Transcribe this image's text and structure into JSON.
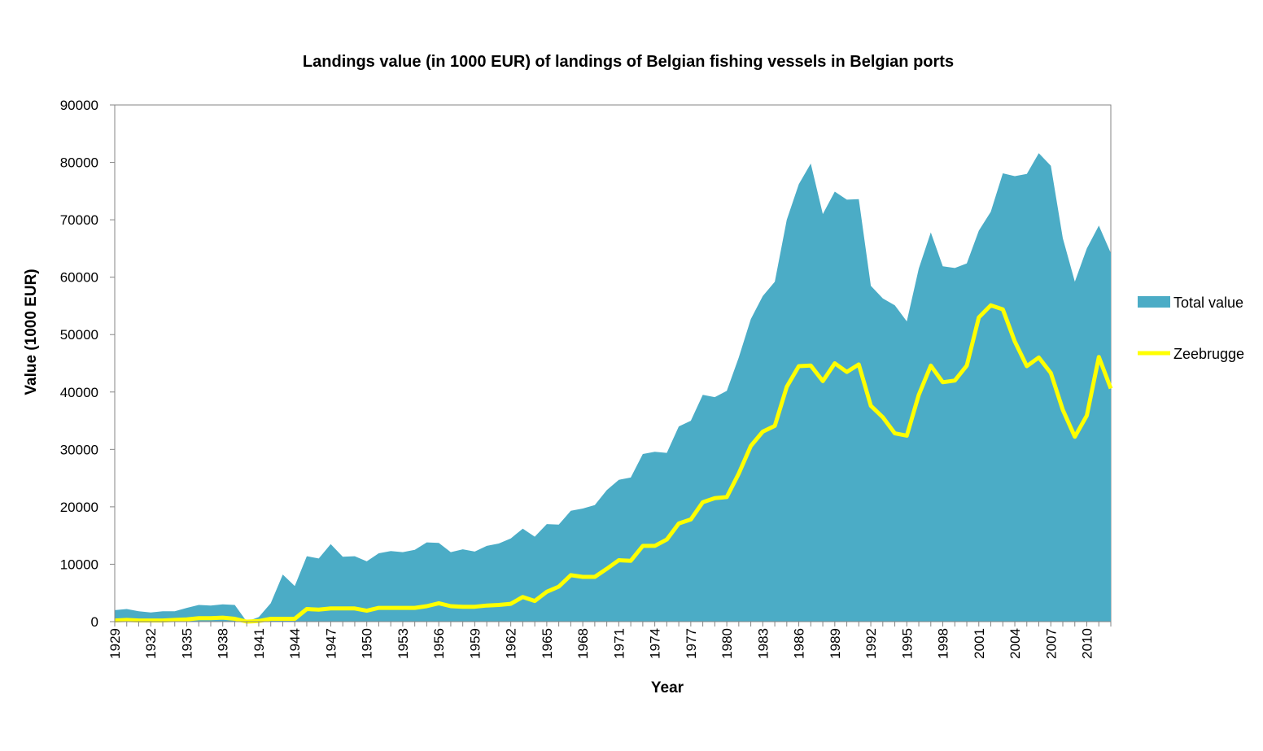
{
  "chart_data": {
    "type": "area",
    "title": "Landings value (in 1000 EUR) of landings of Belgian fishing vessels in Belgian ports",
    "xlabel": "Year",
    "ylabel": "Value  (1000 EUR)",
    "ylim": [
      0,
      90000
    ],
    "yticks": [
      0,
      10000,
      20000,
      30000,
      40000,
      50000,
      60000,
      70000,
      80000,
      90000
    ],
    "xtick_labels": [
      "1929",
      "1932",
      "1935",
      "1938",
      "1941",
      "1944",
      "1947",
      "1950",
      "1953",
      "1956",
      "1959",
      "1962",
      "1965",
      "1968",
      "1971",
      "1974",
      "1977",
      "1980",
      "1983",
      "1986",
      "1989",
      "1992",
      "1995",
      "1998",
      "2001",
      "2004",
      "2007",
      "2010"
    ],
    "grid": false,
    "legend_position": "right",
    "x": [
      1929,
      1930,
      1931,
      1932,
      1933,
      1934,
      1935,
      1936,
      1937,
      1938,
      1939,
      1940,
      1941,
      1942,
      1943,
      1944,
      1945,
      1946,
      1947,
      1948,
      1949,
      1950,
      1951,
      1952,
      1953,
      1954,
      1955,
      1956,
      1957,
      1958,
      1959,
      1960,
      1961,
      1962,
      1963,
      1964,
      1965,
      1966,
      1967,
      1968,
      1969,
      1970,
      1971,
      1972,
      1973,
      1974,
      1975,
      1976,
      1977,
      1978,
      1979,
      1980,
      1981,
      1982,
      1983,
      1984,
      1985,
      1986,
      1987,
      1988,
      1989,
      1990,
      1991,
      1992,
      1993,
      1994,
      1995,
      1996,
      1997,
      1998,
      1999,
      2000,
      2001,
      2002,
      2003,
      2004,
      2005,
      2006,
      2007,
      2008,
      2009,
      2010,
      2011,
      2012
    ],
    "series": [
      {
        "name": "Total value",
        "kind": "area",
        "color": "#4bacc6",
        "values": [
          2000,
          2200,
          1800,
          1600,
          1800,
          1800,
          2400,
          2900,
          2800,
          3000,
          2900,
          0,
          800,
          3200,
          8200,
          6200,
          11400,
          11000,
          13500,
          11300,
          11400,
          10500,
          11900,
          12300,
          12100,
          12500,
          13800,
          13700,
          12100,
          12600,
          12200,
          13200,
          13600,
          14500,
          16200,
          14800,
          17000,
          16900,
          19300,
          19700,
          20300,
          22900,
          24700,
          25100,
          29200,
          29600,
          29400,
          34000,
          35000,
          39500,
          39100,
          40200,
          46000,
          52700,
          56700,
          59200,
          70000,
          76200,
          79800,
          71000,
          74900,
          73500,
          73600,
          58500,
          56300,
          55100,
          52300,
          61500,
          67800,
          61900,
          61600,
          62400,
          68100,
          71400,
          78100,
          77600,
          78000,
          81600,
          79400,
          66800,
          59200,
          65000,
          69000,
          64200
        ]
      },
      {
        "name": "Zeebrugge",
        "kind": "line",
        "color": "#ffff00",
        "values": [
          200,
          300,
          200,
          200,
          200,
          300,
          400,
          600,
          600,
          700,
          500,
          0,
          100,
          500,
          500,
          500,
          2200,
          2100,
          2300,
          2300,
          2300,
          1900,
          2400,
          2400,
          2400,
          2400,
          2700,
          3200,
          2700,
          2600,
          2600,
          2800,
          2900,
          3100,
          4300,
          3600,
          5200,
          6100,
          8100,
          7800,
          7800,
          9200,
          10700,
          10600,
          13200,
          13200,
          14300,
          17100,
          17800,
          20800,
          21500,
          21700,
          25800,
          30600,
          33100,
          34100,
          40900,
          44500,
          44600,
          41900,
          45000,
          43500,
          44800,
          37600,
          35600,
          32800,
          32400,
          39500,
          44600,
          41700,
          42000,
          44600,
          53000,
          55100,
          54400,
          48800,
          44500,
          46000,
          43300,
          36900,
          32200,
          35900,
          46100,
          40600
        ]
      }
    ]
  }
}
